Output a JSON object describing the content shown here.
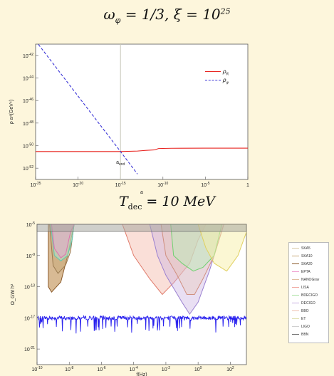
{
  "titles": {
    "top": "ω_φ = 1/3, ξ = 10^25",
    "bottom": "T_dec = 10 MeV"
  },
  "chart_data": [
    {
      "type": "line",
      "xlabel": "a",
      "ylabel": "ρ a⁴(GeV⁴)",
      "xscale": "log",
      "yscale": "log",
      "xlim": [
        1e-25,
        1
      ],
      "ylim": [
        1e-53,
        1e-41
      ],
      "x_ticks": [
        "10^-25",
        "10^-20",
        "10^-15",
        "10^-10",
        "10^-5",
        "1"
      ],
      "y_ticks": [
        "10^-42",
        "10^-44",
        "10^-46",
        "10^-48",
        "10^-50",
        "10^-52"
      ],
      "legend_position": "top-right",
      "annotation": "a_end",
      "annotation_x": 1e-15,
      "series": [
        {
          "name": "ρ_R",
          "color": "#e8231f",
          "style": "solid",
          "x": [
            1e-25,
            1e-20,
            1e-15,
            1e-13,
            1e-12,
            1e-11,
            3e-11,
            1e-09,
            1e-05,
            1
          ],
          "y": [
            3e-51,
            3e-51,
            3e-51,
            3.3e-51,
            3.8e-51,
            4.2e-51,
            5.5e-51,
            5.8e-51,
            6e-51,
            6e-51
          ]
        },
        {
          "name": "ρ_φ",
          "color": "#3a34d6",
          "style": "dashed",
          "x": [
            1e-25,
            1e-15,
            1e-13
          ],
          "y": [
            2e-41,
            3e-51,
            3e-53
          ]
        }
      ]
    },
    {
      "type": "area",
      "xlabel": "f(Hz)",
      "ylabel": "Ω_GW h²",
      "xscale": "log",
      "yscale": "log",
      "xlim": [
        1e-10,
        1000.0
      ],
      "ylim": [
        1e-23,
        1e-05
      ],
      "x_ticks": [
        "10^-10",
        "10^-8",
        "10^-6",
        "10^-4",
        "10^-2",
        "10^0",
        "10^2"
      ],
      "y_ticks": [
        "10^-5",
        "10^-9",
        "10^-13",
        "10^-17",
        "10^-21"
      ],
      "legend_position": "outside-right",
      "legend": [
        "SKA5",
        "SKA10",
        "SKA20",
        "EPTA",
        "NANOGrav",
        "LISA",
        "BDECIGO",
        "DECIGO",
        "BBO",
        "ET",
        "LIGO",
        "BBN"
      ],
      "legend_colors": [
        "#d9c9a8",
        "#c8a878",
        "#8a5a2a",
        "#f0a0d0",
        "#e0c0a0",
        "#f0a8a0",
        "#a8e0a0",
        "#c8b0e0",
        "#f0c0b0",
        "#e0e0b0",
        "#d0d0d0",
        "#707070"
      ],
      "bbn_level": 1.2e-06,
      "signal": {
        "color": "#2a22ee",
        "typical": 1e-17,
        "range": [
          1e-19,
          1e-16
        ]
      }
    }
  ]
}
